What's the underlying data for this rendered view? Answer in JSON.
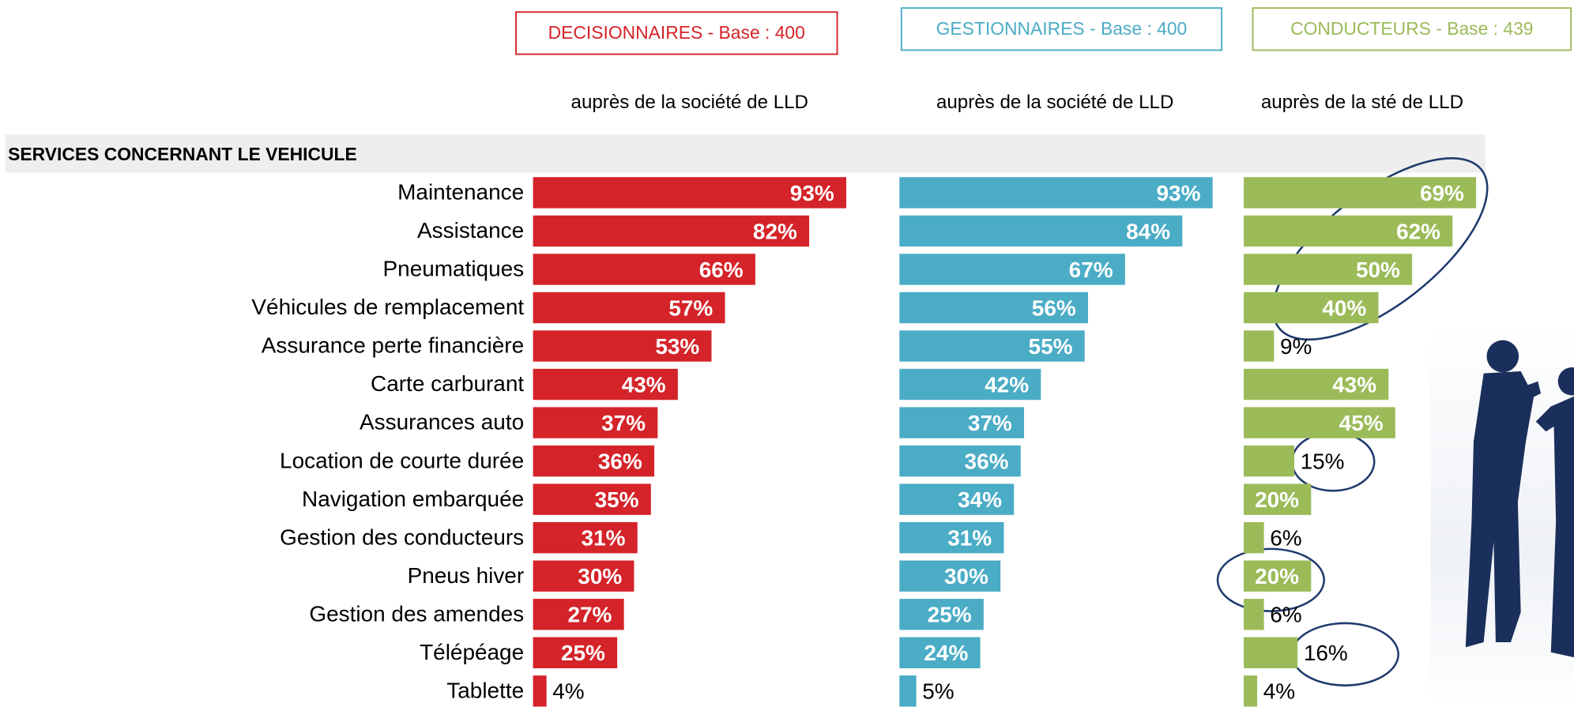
{
  "chart_data": {
    "type": "bar",
    "orientation": "horizontal",
    "section": "SERVICES CONCERNANT LE VEHICULE",
    "categories": [
      "Maintenance",
      "Assistance",
      "Pneumatiques",
      "Véhicules de remplacement",
      "Assurance perte financière",
      "Carte carburant",
      "Assurances auto",
      "Location de courte durée",
      "Navigation embarquée",
      "Gestion des conducteurs",
      "Pneus hiver",
      "Gestion des amendes",
      "Télépéage",
      "Tablette"
    ],
    "series": [
      {
        "name": "DECISIONNAIRES - Base : 400",
        "subtitle": "auprès de la société de LLD",
        "color": "#d42329",
        "values": [
          93,
          82,
          66,
          57,
          53,
          43,
          37,
          36,
          35,
          31,
          30,
          27,
          25,
          4
        ],
        "value_labels": [
          "93%",
          "82%",
          "66%",
          "57%",
          "53%",
          "43%",
          "37%",
          "36%",
          "35%",
          "31%",
          "30%",
          "27%",
          "25%",
          "4%"
        ]
      },
      {
        "name": "GESTIONNAIRES - Base : 400",
        "subtitle": "auprès de la société de LLD",
        "color": "#4bacc6",
        "values": [
          93,
          84,
          67,
          56,
          55,
          42,
          37,
          36,
          34,
          31,
          30,
          25,
          24,
          5
        ],
        "value_labels": [
          "93%",
          "84%",
          "67%",
          "56%",
          "55%",
          "42%",
          "37%",
          "36%",
          "34%",
          "31%",
          "30%",
          "25%",
          "24%",
          "5%"
        ]
      },
      {
        "name": "CONDUCTEURS - Base : 439",
        "subtitle": "auprès de la sté de LLD",
        "color": "#9bbb59",
        "values": [
          69,
          62,
          50,
          40,
          9,
          43,
          45,
          15,
          20,
          6,
          20,
          6,
          16,
          4
        ],
        "value_labels": [
          "69%",
          "62%",
          "50%",
          "40%",
          "9%",
          "43%",
          "45%",
          "15%",
          "20%",
          "6%",
          "20%",
          "6%",
          "16%",
          "4%"
        ]
      }
    ]
  }
}
